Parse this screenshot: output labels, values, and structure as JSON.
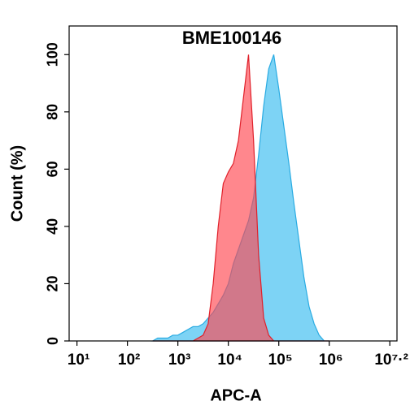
{
  "chart_data": {
    "type": "area",
    "title": "BME100146",
    "xlabel": "APC-A",
    "ylabel": "Count  (%)",
    "xscale": "log",
    "x": [
      316,
      398,
      501,
      631,
      794,
      1000,
      1259,
      1585,
      1995,
      2512,
      3162,
      3981,
      5012,
      6310,
      7943,
      10000,
      12589,
      15849,
      19953,
      25119,
      31623,
      39811,
      50119,
      63096,
      79433,
      100000,
      125893,
      158489,
      199526,
      251189,
      316228,
      398107,
      501187,
      630957,
      794328,
      1000000
    ],
    "series": [
      {
        "color": "#29abe2",
        "fill": "#7dd3f5",
        "values": [
          0,
          1,
          1,
          1,
          2,
          2,
          3,
          4,
          5,
          5,
          6,
          8,
          10,
          13,
          16,
          20,
          27,
          32,
          37,
          42,
          50,
          65,
          82,
          95,
          100,
          88,
          75,
          62,
          48,
          35,
          22,
          12,
          6,
          2,
          0,
          0
        ]
      },
      {
        "color": "#e0202a",
        "fill": "rgba(255,70,80,0.65)",
        "values": [
          0,
          0,
          0,
          0,
          0,
          0,
          0,
          0,
          0,
          1,
          2,
          6,
          20,
          40,
          55,
          59,
          62,
          70,
          85,
          100,
          70,
          30,
          8,
          2,
          0,
          0,
          0,
          0,
          0,
          0,
          0,
          0,
          0,
          0,
          0,
          0
        ]
      }
    ],
    "xlim": [
      7,
      22000000
    ],
    "ylim": [
      0,
      110
    ],
    "xticks": [
      {
        "value": 10,
        "label": "10¹"
      },
      {
        "value": 100,
        "label": "10²"
      },
      {
        "value": 1000,
        "label": "10³"
      },
      {
        "value": 10000,
        "label": "10⁴"
      },
      {
        "value": 100000,
        "label": "10⁵"
      },
      {
        "value": 1000000,
        "label": "10⁶"
      },
      {
        "value": 15848932,
        "label": "10⁷·²"
      }
    ],
    "yticks": [
      0,
      20,
      40,
      60,
      80,
      100
    ]
  }
}
